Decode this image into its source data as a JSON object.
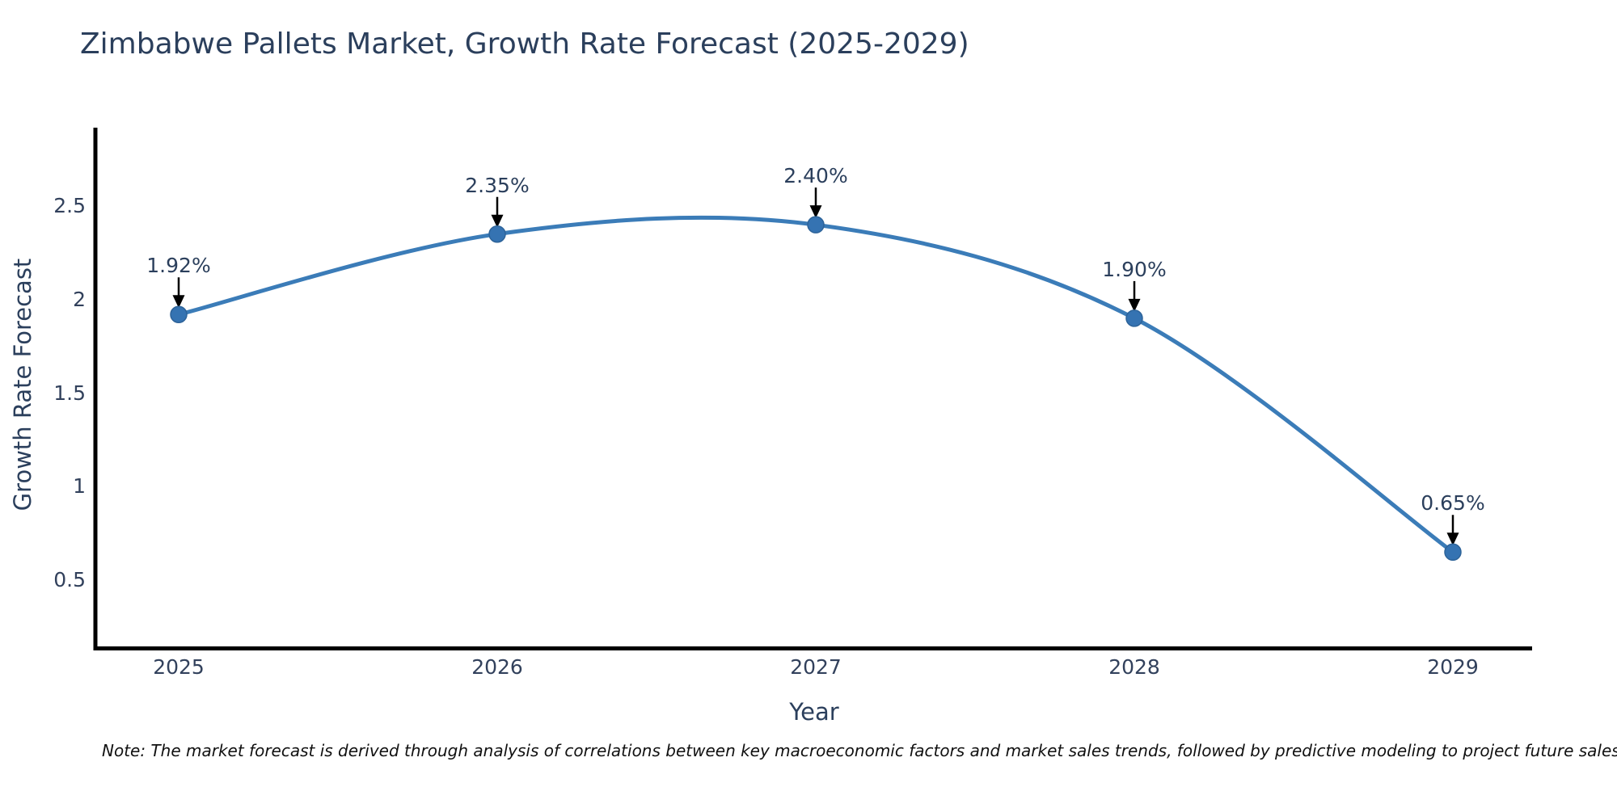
{
  "title": "Zimbabwe Pallets Market, Growth Rate Forecast (2025-2029)",
  "note": "Note: The market forecast is derived through analysis of correlations between key macroeconomic factors and market sales trends, followed by predictive modeling to project future sales",
  "colors": {
    "line": "#3b7cb8",
    "marker_fill": "#3573b2",
    "marker_edge": "#2d6399",
    "axis": "#000000",
    "chart_text": "#2b3f5c",
    "tick_text": "#32415c",
    "annotation_arrow": "#000000",
    "note_text": "#111111",
    "background": "#ffffff"
  },
  "chart_data": {
    "type": "line",
    "line_shape": "spline",
    "title": "Zimbabwe Pallets Market, Growth Rate Forecast (2025-2029)",
    "xlabel": "Year",
    "ylabel": "Growth Rate Forecast",
    "categories": [
      "2025",
      "2026",
      "2027",
      "2028",
      "2029"
    ],
    "series": [
      {
        "name": "Growth Rate Forecast",
        "values": [
          1.92,
          2.35,
          2.4,
          1.9,
          0.65
        ],
        "point_labels": [
          "1.92%",
          "2.35%",
          "2.40%",
          "1.90%",
          "0.65%"
        ]
      }
    ],
    "y_ticks": [
      {
        "label": "2.5",
        "value": 2.5
      },
      {
        "label": "2",
        "value": 2.0
      },
      {
        "label": "1.5",
        "value": 1.5
      },
      {
        "label": "1",
        "value": 1.0
      },
      {
        "label": "0.5",
        "value": 0.5
      }
    ],
    "ylim": [
      0.14,
      2.92
    ],
    "grid": false,
    "legend": "none",
    "markers": "circle",
    "annotation_arrows": true
  }
}
